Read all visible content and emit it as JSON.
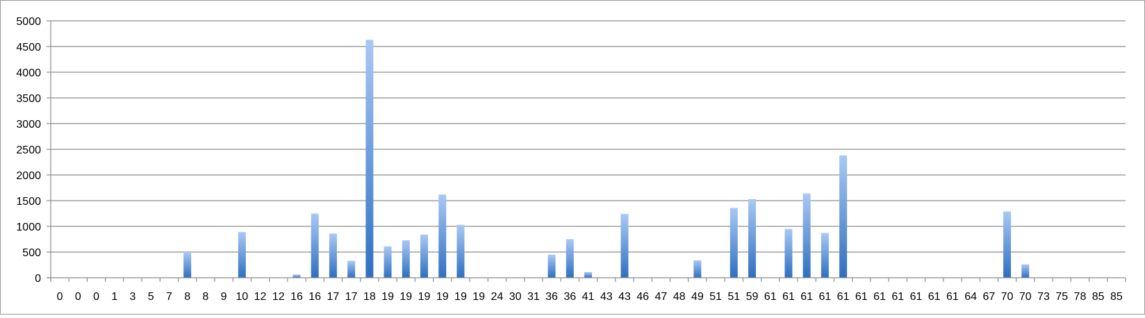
{
  "chart_data": {
    "type": "bar",
    "title": "",
    "xlabel": "",
    "ylabel": "",
    "ylim": [
      0,
      5000
    ],
    "y_ticks": [
      0,
      500,
      1000,
      1500,
      2000,
      2500,
      3000,
      3500,
      4000,
      4500,
      5000
    ],
    "grid": true,
    "legend": "none",
    "categories": [
      "0",
      "0",
      "0",
      "1",
      "3",
      "5",
      "7",
      "8",
      "8",
      "9",
      "10",
      "12",
      "12",
      "16",
      "16",
      "17",
      "17",
      "18",
      "19",
      "19",
      "19",
      "19",
      "19",
      "19",
      "24",
      "30",
      "31",
      "36",
      "36",
      "41",
      "43",
      "43",
      "46",
      "47",
      "48",
      "49",
      "51",
      "51",
      "59",
      "61",
      "61",
      "61",
      "61",
      "61",
      "61",
      "61",
      "61",
      "61",
      "61",
      "61",
      "64",
      "67",
      "70",
      "70",
      "73",
      "75",
      "78",
      "85",
      "85"
    ],
    "values": [
      0,
      0,
      0,
      0,
      0,
      0,
      0,
      500,
      0,
      0,
      890,
      0,
      0,
      60,
      1250,
      860,
      330,
      4630,
      610,
      730,
      840,
      1620,
      1030,
      0,
      0,
      0,
      0,
      450,
      750,
      110,
      0,
      1240,
      0,
      0,
      0,
      340,
      0,
      1360,
      1530,
      0,
      950,
      1640,
      870,
      2380,
      0,
      0,
      0,
      0,
      0,
      0,
      0,
      0,
      1290,
      260,
      0,
      0,
      0,
      0,
      0
    ],
    "colors": {
      "bar_dark": "#2f6fc0",
      "bar_light": "#a9c9f5",
      "grid": "#8c8c8c",
      "axis": "#8c8c8c",
      "frame": "#9a9a9a",
      "text": "#000000"
    }
  }
}
